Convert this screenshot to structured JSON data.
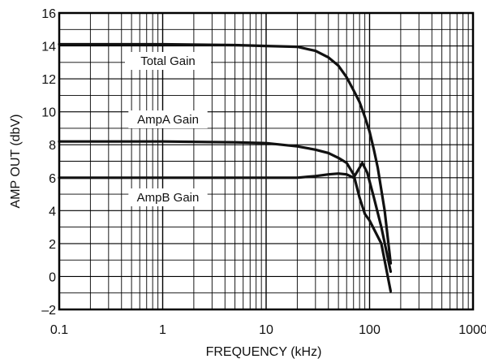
{
  "chart_data": {
    "type": "line",
    "title": "",
    "xlabel": "FREQUENCY (kHz)",
    "ylabel": "AMP OUT (dbV)",
    "xscale": "log",
    "xlim": [
      0.1,
      1000
    ],
    "ylim": [
      -2,
      16
    ],
    "grid": true,
    "xticks": [
      "0.1",
      "1",
      "10",
      "100",
      "1000"
    ],
    "yticks": [
      "–2",
      "0",
      "2",
      "4",
      "6",
      "8",
      "10",
      "12",
      "14",
      "16"
    ],
    "series": [
      {
        "name": "Total Gain",
        "x": [
          0.1,
          1,
          5,
          10,
          20,
          30,
          40,
          50,
          60,
          70,
          80,
          90,
          100,
          110,
          120,
          140,
          160
        ],
        "y": [
          14.1,
          14.1,
          14.05,
          14.0,
          13.95,
          13.7,
          13.3,
          12.8,
          12.1,
          11.3,
          10.6,
          9.7,
          8.8,
          7.7,
          6.6,
          4.0,
          0.8
        ]
      },
      {
        "name": "AmpA Gain",
        "x": [
          0.1,
          1,
          5,
          10,
          20,
          30,
          40,
          50,
          60,
          70,
          80,
          90,
          100,
          130,
          160
        ],
        "y": [
          8.2,
          8.2,
          8.15,
          8.1,
          7.9,
          7.7,
          7.5,
          7.2,
          6.9,
          6.2,
          4.8,
          3.8,
          3.4,
          2.0,
          -0.9
        ]
      },
      {
        "name": "AmpB Gain",
        "x": [
          0.1,
          1,
          10,
          20,
          30,
          40,
          50,
          60,
          70,
          80,
          85,
          95,
          110,
          130,
          160
        ],
        "y": [
          6.0,
          6.0,
          6.0,
          6.0,
          6.1,
          6.2,
          6.25,
          6.2,
          6.0,
          6.6,
          6.9,
          6.3,
          4.8,
          3.0,
          0.3
        ]
      }
    ]
  }
}
